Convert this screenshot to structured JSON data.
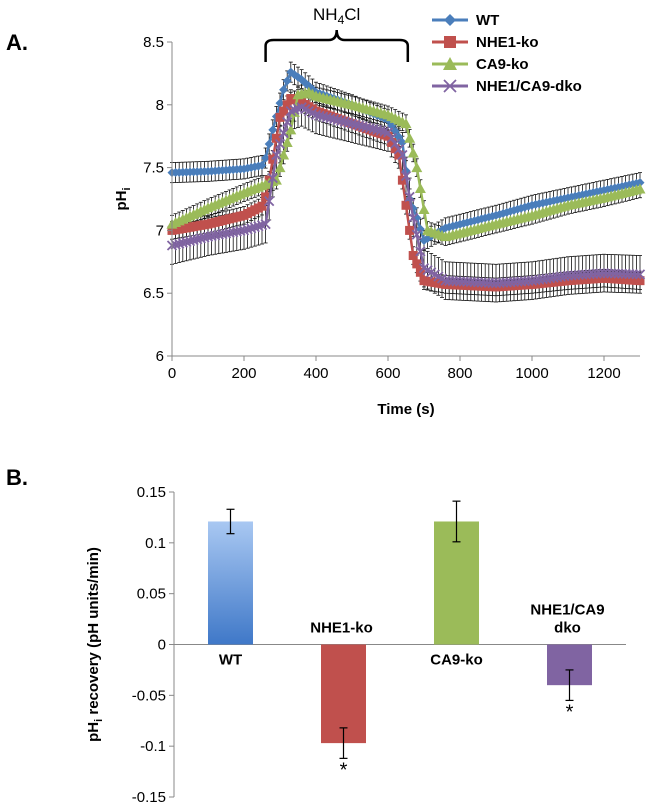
{
  "figure": {
    "panel_a_label": "A.",
    "panel_b_label": "B."
  },
  "chart_data": [
    {
      "type": "line",
      "panel": "A.",
      "title": "",
      "xlabel": "Time (s)",
      "ylabel_main": "pH",
      "ylabel_sub": "i",
      "xlim": [
        0,
        1300
      ],
      "ylim": [
        6,
        8.5
      ],
      "x_ticks": [
        0,
        200,
        400,
        600,
        800,
        1000,
        1200
      ],
      "y_ticks": [
        6,
        6.5,
        7,
        7.5,
        8,
        8.5
      ],
      "y_tick_labels": [
        "6",
        "6.5",
        "7",
        "7.5",
        "8",
        "8.5"
      ],
      "annotation": {
        "main": "NH",
        "sub": "4",
        "tail": "Cl",
        "x_start": 260,
        "x_end": 655
      },
      "legend_position": "top-right",
      "series": [
        {
          "name": "WT",
          "color": "#4a7ebb",
          "marker": "diamond",
          "points": [
            [
              0,
              7.46
            ],
            [
              100,
              7.47
            ],
            [
              200,
              7.49
            ],
            [
              255,
              7.52
            ],
            [
              280,
              7.8
            ],
            [
              310,
              8.12
            ],
            [
              330,
              8.26
            ],
            [
              360,
              8.2
            ],
            [
              400,
              8.1
            ],
            [
              500,
              8.0
            ],
            [
              600,
              7.88
            ],
            [
              640,
              7.7
            ],
            [
              660,
              7.25
            ],
            [
              680,
              7.1
            ],
            [
              700,
              6.92
            ],
            [
              760,
              7.02
            ],
            [
              900,
              7.12
            ],
            [
              1000,
              7.2
            ],
            [
              1100,
              7.26
            ],
            [
              1200,
              7.32
            ],
            [
              1300,
              7.38
            ]
          ],
          "error": 0.08
        },
        {
          "name": "NHE1-ko",
          "color": "#c0504d",
          "marker": "square",
          "points": [
            [
              0,
              7.0
            ],
            [
              100,
              7.05
            ],
            [
              200,
              7.12
            ],
            [
              255,
              7.2
            ],
            [
              270,
              7.4
            ],
            [
              300,
              7.9
            ],
            [
              330,
              8.05
            ],
            [
              360,
              8.02
            ],
            [
              400,
              7.95
            ],
            [
              500,
              7.85
            ],
            [
              600,
              7.75
            ],
            [
              630,
              7.6
            ],
            [
              650,
              7.2
            ],
            [
              670,
              6.8
            ],
            [
              700,
              6.6
            ],
            [
              760,
              6.57
            ],
            [
              900,
              6.55
            ],
            [
              1000,
              6.57
            ],
            [
              1100,
              6.6
            ],
            [
              1200,
              6.62
            ],
            [
              1300,
              6.6
            ]
          ],
          "error": 0.07
        },
        {
          "name": "CA9-ko",
          "color": "#9bbb59",
          "marker": "triangle",
          "points": [
            [
              0,
              7.05
            ],
            [
              100,
              7.18
            ],
            [
              200,
              7.3
            ],
            [
              290,
              7.4
            ],
            [
              330,
              7.8
            ],
            [
              350,
              8.08
            ],
            [
              380,
              8.1
            ],
            [
              400,
              8.07
            ],
            [
              500,
              8.0
            ],
            [
              600,
              7.92
            ],
            [
              650,
              7.85
            ],
            [
              680,
              7.5
            ],
            [
              710,
              7.0
            ],
            [
              760,
              6.95
            ],
            [
              900,
              7.05
            ],
            [
              1000,
              7.12
            ],
            [
              1100,
              7.2
            ],
            [
              1200,
              7.26
            ],
            [
              1300,
              7.33
            ]
          ],
          "error": 0.07
        },
        {
          "name": "NHE1/CA9-dko",
          "color": "#8064a2",
          "marker": "x",
          "points": [
            [
              0,
              6.88
            ],
            [
              100,
              6.95
            ],
            [
              200,
              7.0
            ],
            [
              260,
              7.05
            ],
            [
              290,
              7.6
            ],
            [
              330,
              7.95
            ],
            [
              360,
              7.98
            ],
            [
              400,
              7.92
            ],
            [
              500,
              7.85
            ],
            [
              600,
              7.78
            ],
            [
              640,
              7.6
            ],
            [
              670,
              7.1
            ],
            [
              700,
              6.7
            ],
            [
              760,
              6.6
            ],
            [
              900,
              6.58
            ],
            [
              1000,
              6.6
            ],
            [
              1100,
              6.64
            ],
            [
              1200,
              6.66
            ],
            [
              1300,
              6.65
            ]
          ],
          "error": 0.15
        }
      ]
    },
    {
      "type": "bar",
      "panel": "B.",
      "title": "",
      "ylabel_main": "pH",
      "ylabel_sub": "i",
      "ylabel_tail": " recovery (pH units/min)",
      "ylim": [
        -0.15,
        0.15
      ],
      "y_ticks": [
        -0.15,
        -0.1,
        -0.05,
        0,
        0.05,
        0.1,
        0.15
      ],
      "y_tick_labels": [
        "-0.15",
        "-0.1",
        "-0.05",
        "0",
        "0.05",
        "0.1",
        "0.15"
      ],
      "categories": [
        "WT",
        "NHE1-ko",
        "CA9-ko",
        "NHE1/CA9\ndko"
      ],
      "category_lines": [
        [
          "WT"
        ],
        [
          "NHE1-ko"
        ],
        [
          "CA9-ko"
        ],
        [
          "NHE1/CA9",
          "dko"
        ]
      ],
      "values": [
        0.121,
        -0.097,
        0.121,
        -0.04
      ],
      "errors": [
        0.012,
        0.015,
        0.02,
        0.015
      ],
      "significance": [
        "",
        "*",
        "",
        "*"
      ],
      "colors": [
        {
          "top": "#a9c8f2",
          "bottom": "#3f78c8"
        },
        {
          "top": "#c0504d",
          "bottom": "#c0504d"
        },
        {
          "top": "#9bbb59",
          "bottom": "#9bbb59"
        },
        {
          "top": "#8064a2",
          "bottom": "#8064a2"
        }
      ]
    }
  ]
}
